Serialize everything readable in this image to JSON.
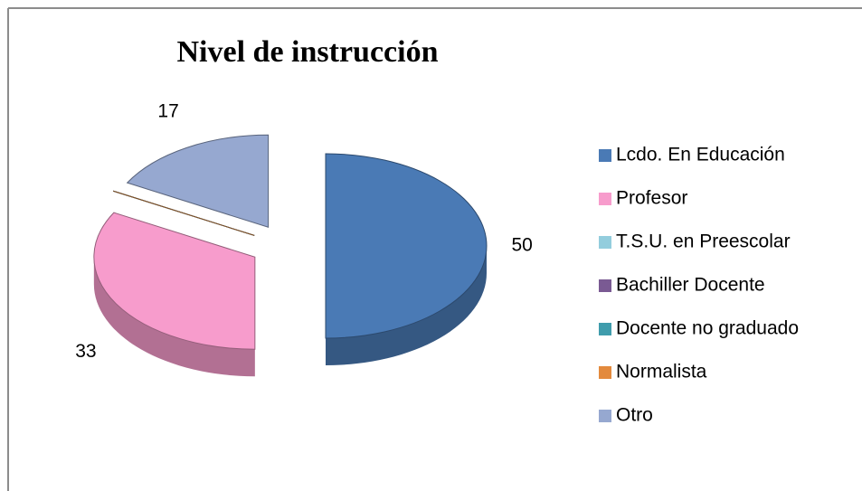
{
  "chart_data": {
    "type": "pie",
    "title": "Nivel de instrucción",
    "categories": [
      "Lcdo. En Educación",
      "Profesor",
      "T.S.U. en Preescolar",
      "Bachiller Docente",
      "Docente no graduado",
      "Normalista",
      "Otro"
    ],
    "values": [
      50,
      33,
      0,
      0,
      0,
      0,
      17
    ],
    "colors": [
      "#4a7ab5",
      "#f79ccc",
      "#93cddd",
      "#7a5a93",
      "#3f9cac",
      "#e38a3d",
      "#96a8d0"
    ],
    "legend": "right"
  }
}
